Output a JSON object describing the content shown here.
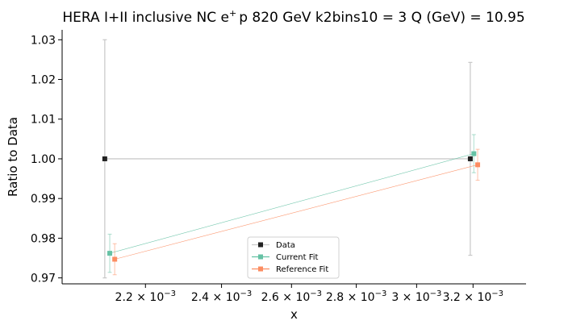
{
  "chart_data": {
    "type": "line",
    "title": "HERA I+II inclusive NC e⁺ p 820 GeV k2bins10 = 3 Q (GeV) = 10.95",
    "title_parts": {
      "pre": "HERA I+II inclusive NC e",
      "sup": "+",
      "post": "p 820 GeV k2bins10 = 3 Q (GeV) = 10.95"
    },
    "xlabel": "x",
    "ylabel": "Ratio to Data",
    "xscale": "log",
    "xlim": [
      0.002,
      0.0034
    ],
    "ylim": [
      0.9685,
      1.0325
    ],
    "x_ticks": [
      {
        "value": 0.0022,
        "mantissa": "2.2",
        "base": "10",
        "exp": "−3"
      },
      {
        "value": 0.0024,
        "mantissa": "2.4",
        "base": "10",
        "exp": "−3"
      },
      {
        "value": 0.0026,
        "mantissa": "2.6",
        "base": "10",
        "exp": "−3"
      },
      {
        "value": 0.0028,
        "mantissa": "2.8",
        "base": "10",
        "exp": "−3"
      },
      {
        "value": 0.003,
        "mantissa": "3",
        "base": "10",
        "exp": "−3"
      },
      {
        "value": 0.0032,
        "mantissa": "3.2",
        "base": "10",
        "exp": "−3"
      }
    ],
    "y_ticks": [
      "0.97",
      "0.98",
      "0.99",
      "1.00",
      "1.01",
      "1.02",
      "1.03"
    ],
    "grid": false,
    "legend_position": "lower-center",
    "series": [
      {
        "name": "Data",
        "color": "#222222",
        "line_color": "#cccccc",
        "x": [
          0.0021,
          0.00319
        ],
        "y": [
          1.0,
          1.0
        ],
        "yerr": [
          0.03,
          0.0243
        ]
      },
      {
        "name": "Current Fit",
        "color": "#66c2a5",
        "line_color": "#66c2a5",
        "x": [
          0.002112,
          0.003203
        ],
        "y": [
          0.9762,
          1.0013
        ],
        "yerr": [
          0.0048,
          0.0048
        ]
      },
      {
        "name": "Reference Fit",
        "color": "#fc8d62",
        "line_color": "#fc8d62",
        "x": [
          0.002124,
          0.003217
        ],
        "y": [
          0.9747,
          0.9985
        ],
        "yerr": [
          0.0039,
          0.0039
        ]
      }
    ]
  }
}
